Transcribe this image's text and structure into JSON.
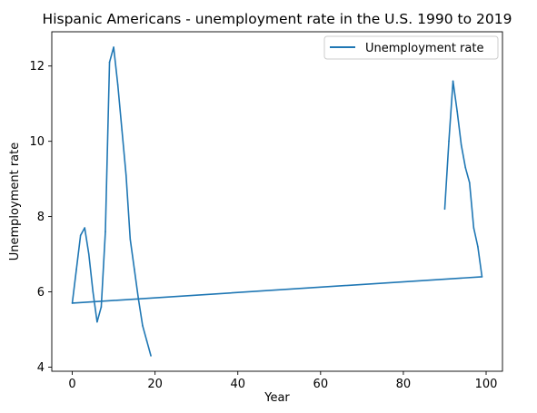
{
  "chart_data": {
    "type": "line",
    "title": "Hispanic Americans - unemployment rate in the U.S. 1990 to 2019",
    "xlabel": "Year",
    "ylabel": "Unemployment rate",
    "xlim": [
      -4.95,
      103.95
    ],
    "ylim": [
      3.89,
      12.91
    ],
    "xticks": [
      0,
      20,
      40,
      60,
      80,
      100
    ],
    "yticks": [
      4,
      6,
      8,
      10,
      12
    ],
    "grid": false,
    "legend_position": "top-right",
    "series": [
      {
        "name": "Unemployment rate",
        "color": "#1f77b4",
        "points": [
          [
            90,
            8.2
          ],
          [
            91,
            10.0
          ],
          [
            92,
            11.6
          ],
          [
            93,
            10.8
          ],
          [
            94,
            9.9
          ],
          [
            95,
            9.3
          ],
          [
            96,
            8.9
          ],
          [
            97,
            7.7
          ],
          [
            98,
            7.2
          ],
          [
            99,
            6.4
          ],
          [
            0,
            5.7
          ],
          [
            1,
            6.6
          ],
          [
            2,
            7.5
          ],
          [
            3,
            7.7
          ],
          [
            4,
            7.0
          ],
          [
            5,
            6.0
          ],
          [
            6,
            5.2
          ],
          [
            7,
            5.6
          ],
          [
            8,
            7.6
          ],
          [
            9,
            12.1
          ],
          [
            10,
            12.5
          ],
          [
            11,
            11.5
          ],
          [
            12,
            10.3
          ],
          [
            13,
            9.1
          ],
          [
            14,
            7.4
          ],
          [
            15,
            6.6
          ],
          [
            16,
            5.8
          ],
          [
            17,
            5.1
          ],
          [
            18,
            4.7
          ],
          [
            19,
            4.3
          ]
        ]
      }
    ]
  }
}
